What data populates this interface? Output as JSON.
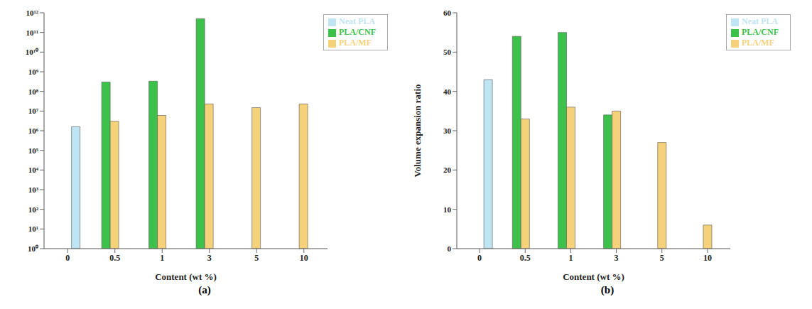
{
  "chart_data": [
    {
      "type": "bar",
      "title": "(a)",
      "x_label": "Content (wt %)",
      "categories": [
        "0",
        "0.5",
        "1",
        "3",
        "5",
        "10"
      ],
      "series": [
        {
          "name": "PLA/CNF",
          "color": "#3cc24a",
          "values": [
            null,
            300000000,
            330000000,
            500000000000,
            null,
            null
          ]
        },
        {
          "name": "PLA/MF",
          "color": "#f5d27a",
          "values": [
            null,
            3000000,
            6000000,
            23000000,
            15000000,
            23000000
          ]
        },
        {
          "name": "Neat PLA",
          "color": "#bfe4f2",
          "values": [
            1600000,
            null,
            null,
            null,
            null,
            null
          ]
        }
      ],
      "log": "y",
      "ylim": [
        1,
        1000000000000
      ],
      "yticks": [
        {
          "value": 1,
          "label": "10⁰"
        },
        {
          "value": 10,
          "label": "10¹"
        },
        {
          "value": 100,
          "label": "10²"
        },
        {
          "value": 1000,
          "label": "10³"
        },
        {
          "value": 10000,
          "label": "10⁴"
        },
        {
          "value": 100000,
          "label": "10⁵"
        },
        {
          "value": 1000000,
          "label": "10⁶"
        },
        {
          "value": 10000000,
          "label": "10⁷"
        },
        {
          "value": 100000000,
          "label": "10⁸"
        },
        {
          "value": 1000000000,
          "label": "10⁹"
        },
        {
          "value": 10000000000,
          "label": "10¹⁰"
        },
        {
          "value": 100000000000,
          "label": "10¹¹"
        },
        {
          "value": 1000000000000,
          "label": "10¹²"
        }
      ],
      "legend": "upper right"
    },
    {
      "type": "bar",
      "title": "(b)",
      "x_label": "Content (wt %)",
      "y_label": "Volume expansion ratio",
      "categories": [
        "0",
        "0.5",
        "1",
        "3",
        "5",
        "10"
      ],
      "series": [
        {
          "name": "PLA/CNF",
          "color": "#3cc24a",
          "values": [
            null,
            54,
            55,
            34,
            null,
            null
          ]
        },
        {
          "name": "PLA/MF",
          "color": "#f5d27a",
          "values": [
            null,
            33,
            36,
            35,
            27,
            6
          ]
        },
        {
          "name": "Neat PLA",
          "color": "#bfe4f2",
          "values": [
            43,
            null,
            null,
            null,
            null,
            null
          ]
        }
      ],
      "ylim": [
        0,
        60
      ],
      "yticks": [
        0,
        10,
        20,
        30,
        40,
        50,
        60
      ],
      "legend": "upper right"
    }
  ]
}
